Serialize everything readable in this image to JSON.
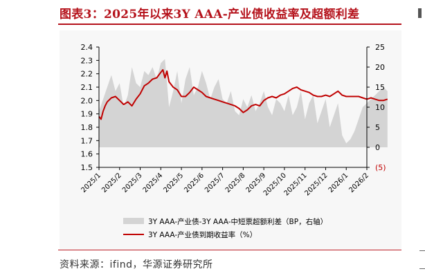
{
  "title": "图表3：2025年以来3Y AAA-产业债收益率及超额利差",
  "source": "资料来源：ifind，华源证券研究所",
  "colors": {
    "accent": "#b5121b",
    "line": "#c00000",
    "area": "#d4d4d4"
  },
  "chart_data": {
    "type": "area+line",
    "title": "图表3：2025年以来3Y AAA-产业债收益率及超额利差",
    "x_ticks": [
      "2025/1",
      "2025/2",
      "2025/3",
      "2025/4",
      "2025/5",
      "2025/6",
      "2025/7",
      "2025/8",
      "2025/9",
      "2025/10",
      "2025/11",
      "2025/12",
      "2026/1",
      "2026/2"
    ],
    "y_left": {
      "ticks": [
        "1.5",
        "1.6",
        "1.7",
        "1.8",
        "1.9",
        "2.0",
        "2.1",
        "2.2",
        "2.3",
        "2.4"
      ],
      "lim": [
        1.5,
        2.4
      ]
    },
    "y_right": {
      "ticks": [
        "(5)",
        "0",
        "5",
        "10",
        "15",
        "20",
        "25"
      ],
      "lim": [
        -5,
        25
      ]
    },
    "legend": {
      "placement": "bottom"
    },
    "series": [
      {
        "name": "3Y AAA-产业债-3Y AAA-中短票超额利差（BP，右轴）",
        "type": "area",
        "axis": "right",
        "x": [
          0,
          0.2,
          0.4,
          0.6,
          0.8,
          1.0,
          1.2,
          1.4,
          1.6,
          1.8,
          2.0,
          2.2,
          2.4,
          2.6,
          2.8,
          3.0,
          3.2,
          3.4,
          3.6,
          3.8,
          4.0,
          4.2,
          4.4,
          4.6,
          4.8,
          5.0,
          5.2,
          5.4,
          5.6,
          5.8,
          6.0,
          6.2,
          6.4,
          6.6,
          6.8,
          7.0,
          7.2,
          7.4,
          7.6,
          7.8,
          8.0,
          8.2,
          8.4,
          8.6,
          8.8,
          9.0,
          9.2,
          9.4,
          9.6,
          9.8,
          10.0,
          10.2,
          10.4,
          10.6,
          10.8,
          11.0,
          11.2,
          11.4,
          11.6,
          11.8,
          12.0,
          12.2,
          12.4,
          12.6,
          12.8,
          13.0,
          13.2,
          13.4,
          13.6,
          13.8,
          14.0
        ],
        "values": [
          9,
          12,
          15,
          18,
          14,
          16,
          10,
          13,
          20,
          16,
          15,
          19,
          18,
          20,
          17,
          21,
          22,
          10,
          14,
          19,
          11,
          17,
          20,
          13,
          15,
          19,
          16,
          12,
          15,
          17,
          12,
          11,
          14,
          9,
          8,
          12,
          10,
          13,
          9,
          11,
          14,
          10,
          8,
          12,
          11,
          9,
          13,
          8,
          10,
          14,
          7,
          11,
          13,
          6,
          9,
          12,
          5,
          8,
          11,
          3,
          1,
          2,
          4,
          7,
          10,
          11,
          12,
          13,
          14,
          15,
          14
        ]
      },
      {
        "name": "3Y AAA-产业债到期收益率（%）",
        "type": "line",
        "axis": "left",
        "x": [
          0,
          0.1,
          0.2,
          0.3,
          0.4,
          0.6,
          0.8,
          1.0,
          1.2,
          1.4,
          1.6,
          1.8,
          2.0,
          2.2,
          2.4,
          2.6,
          2.8,
          3.0,
          3.1,
          3.2,
          3.3,
          3.4,
          3.6,
          3.8,
          4.0,
          4.2,
          4.4,
          4.6,
          4.8,
          5.0,
          5.2,
          5.4,
          5.6,
          5.8,
          6.0,
          6.2,
          6.4,
          6.6,
          6.8,
          7.0,
          7.2,
          7.4,
          7.6,
          7.8,
          8.0,
          8.2,
          8.4,
          8.6,
          8.8,
          9.0,
          9.2,
          9.4,
          9.6,
          9.8,
          10.0,
          10.2,
          10.4,
          10.6,
          10.8,
          11.0,
          11.2,
          11.4,
          11.6,
          11.8,
          12.0,
          12.2,
          12.4,
          12.6,
          12.8,
          13.0,
          13.2,
          13.4,
          13.6,
          13.8,
          14.0
        ],
        "values": [
          1.88,
          1.86,
          1.92,
          1.96,
          1.99,
          2.02,
          2.03,
          2.0,
          1.97,
          1.99,
          1.96,
          2.01,
          2.05,
          2.11,
          2.13,
          2.16,
          2.17,
          2.21,
          2.23,
          2.17,
          2.22,
          2.14,
          2.1,
          2.08,
          2.03,
          2.03,
          2.06,
          2.1,
          2.08,
          2.06,
          2.03,
          2.02,
          2.01,
          2.0,
          1.99,
          1.98,
          1.97,
          1.96,
          1.94,
          1.91,
          1.93,
          1.96,
          1.97,
          1.96,
          2.0,
          2.02,
          2.03,
          2.02,
          2.04,
          2.05,
          2.07,
          2.09,
          2.1,
          2.08,
          2.07,
          2.06,
          2.04,
          2.03,
          2.03,
          2.04,
          2.03,
          2.05,
          2.07,
          2.04,
          2.03,
          2.03,
          2.03,
          2.03,
          2.02,
          2.01,
          2.02,
          2.01,
          2.0,
          2.0,
          2.01
        ]
      }
    ]
  }
}
